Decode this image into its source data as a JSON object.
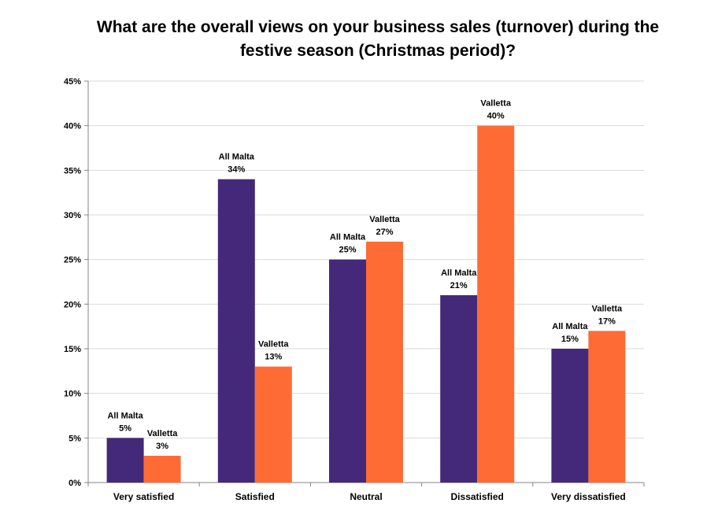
{
  "chart_data": {
    "type": "bar",
    "title_lines": [
      "What are the overall views on your business sales (turnover) during the",
      "festive season (Christmas period)?"
    ],
    "categories": [
      "Very satisfied",
      "Satisfied",
      "Neutral",
      "Dissatisfied",
      "Very dissatisfied"
    ],
    "series": [
      {
        "name": "All Malta",
        "values": [
          5,
          34,
          25,
          21,
          15
        ],
        "labels": [
          "5%",
          "34%",
          "25%",
          "21%",
          "15%"
        ],
        "color": "#44297A"
      },
      {
        "name": "Valletta",
        "values": [
          3,
          13,
          27,
          40,
          17
        ],
        "labels": [
          "3%",
          "13%",
          "27%",
          "40%",
          "17%"
        ],
        "color": "#FF6B35"
      }
    ],
    "yticks": [
      "0%",
      "5%",
      "10%",
      "15%",
      "20%",
      "25%",
      "30%",
      "35%",
      "40%",
      "45%"
    ],
    "ylim": [
      0,
      45
    ],
    "grid": true,
    "legend": "none (series names shown as data labels)"
  }
}
